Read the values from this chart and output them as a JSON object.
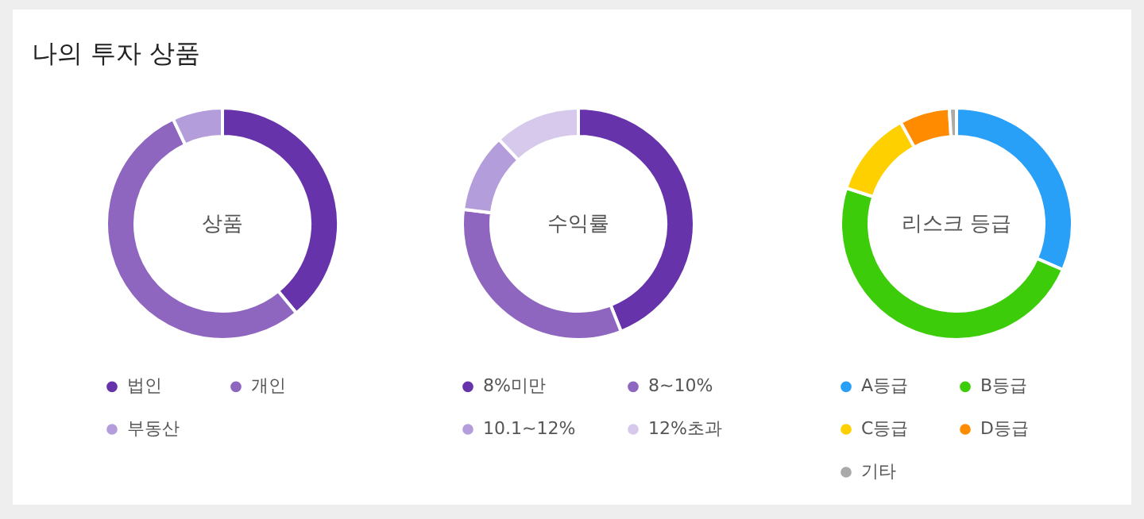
{
  "chart_data": [
    {
      "type": "donut",
      "title": "상품",
      "annotations": [
        "나의 투자 상품"
      ],
      "categories": [
        "법인",
        "개인",
        "부동산"
      ],
      "values": [
        39,
        54,
        7
      ],
      "colors": [
        "#6633aa",
        "#8e66c0",
        "#b39ddb"
      ],
      "legend": "bottom"
    },
    {
      "type": "donut",
      "title": "수익률",
      "categories": [
        "8%미만",
        "8~10%",
        "10.1~12%",
        "12%초과"
      ],
      "values": [
        44,
        33,
        11,
        12
      ],
      "colors": [
        "#6633aa",
        "#8e66c0",
        "#b39ddb",
        "#d7c9ec"
      ],
      "legend": "bottom"
    },
    {
      "type": "donut",
      "title": "리스크 등급",
      "categories": [
        "A등급",
        "B등급",
        "C등급",
        "D등급",
        "기타"
      ],
      "values": [
        31.5,
        48.5,
        12,
        7,
        1
      ],
      "colors": [
        "#29a0f8",
        "#3ccc0a",
        "#ffd000",
        "#ff8c00",
        "#aaaaaa"
      ],
      "legend": "bottom"
    }
  ]
}
